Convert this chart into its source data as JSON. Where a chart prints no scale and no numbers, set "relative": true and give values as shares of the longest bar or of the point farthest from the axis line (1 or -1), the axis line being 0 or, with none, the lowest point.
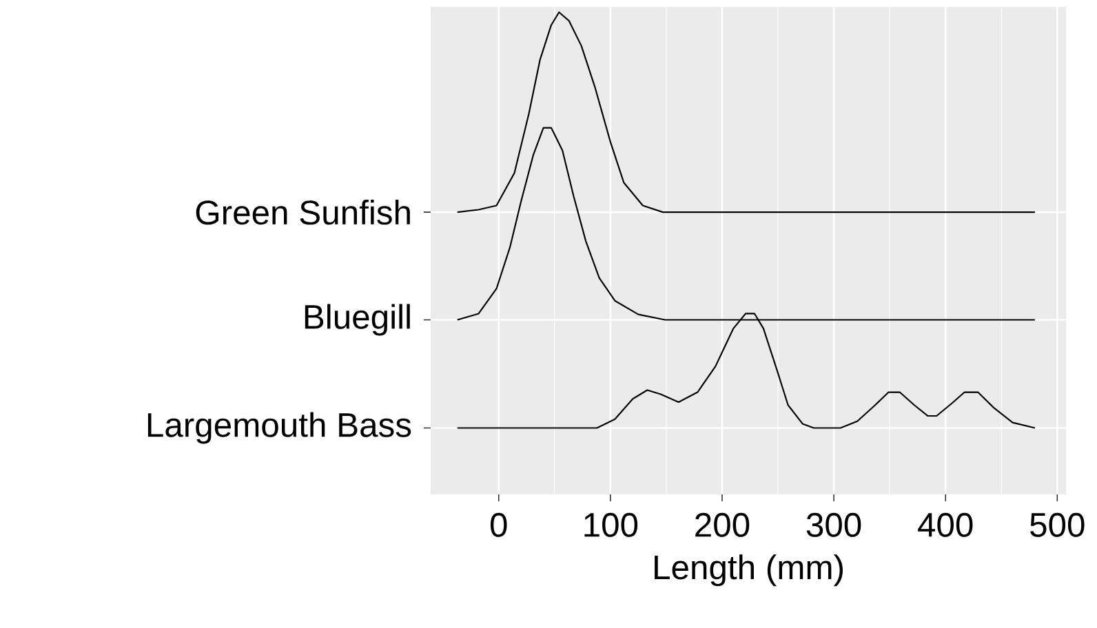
{
  "chart_data": {
    "type": "line",
    "xlabel": "Length (mm)",
    "xlim": [
      -61,
      508
    ],
    "xticks": [
      0,
      100,
      200,
      300,
      400,
      500
    ],
    "relative": true,
    "grid": true,
    "series": [
      {
        "name": "Largemouth Bass",
        "color": "#000000",
        "x": [
          -37,
          88,
          104,
          120,
          133,
          145,
          161,
          178,
          194,
          210,
          221,
          229,
          237,
          249,
          259,
          272,
          282,
          306,
          321,
          337,
          349,
          359,
          372,
          384,
          392,
          406,
          417,
          429,
          443,
          460,
          480
        ],
        "values": [
          0,
          0,
          0.021,
          0.07,
          0.091,
          0.081,
          0.062,
          0.086,
          0.148,
          0.239,
          0.275,
          0.275,
          0.239,
          0.14,
          0.055,
          0.01,
          0,
          0,
          0.016,
          0.055,
          0.086,
          0.086,
          0.055,
          0.029,
          0.029,
          0.06,
          0.086,
          0.086,
          0.049,
          0.013,
          0
        ]
      },
      {
        "name": "Bluegill",
        "color": "#000000",
        "x": [
          -37,
          -18,
          -2,
          10,
          20,
          31,
          40,
          47,
          57,
          67,
          78,
          90,
          104,
          125,
          149,
          163,
          480
        ],
        "values": [
          0.26,
          0.275,
          0.335,
          0.434,
          0.545,
          0.657,
          0.722,
          0.722,
          0.668,
          0.558,
          0.449,
          0.361,
          0.306,
          0.273,
          0.26,
          0.26,
          0.26
        ]
      },
      {
        "name": "Green Sunfish",
        "color": "#000000",
        "x": [
          -37,
          -18,
          -2,
          14,
          27,
          37,
          47,
          54,
          63,
          74,
          86,
          100,
          112,
          129,
          147,
          480
        ],
        "values": [
          0.519,
          0.525,
          0.535,
          0.613,
          0.756,
          0.886,
          0.969,
          1,
          0.979,
          0.919,
          0.821,
          0.688,
          0.59,
          0.535,
          0.519,
          0.519
        ]
      }
    ]
  }
}
